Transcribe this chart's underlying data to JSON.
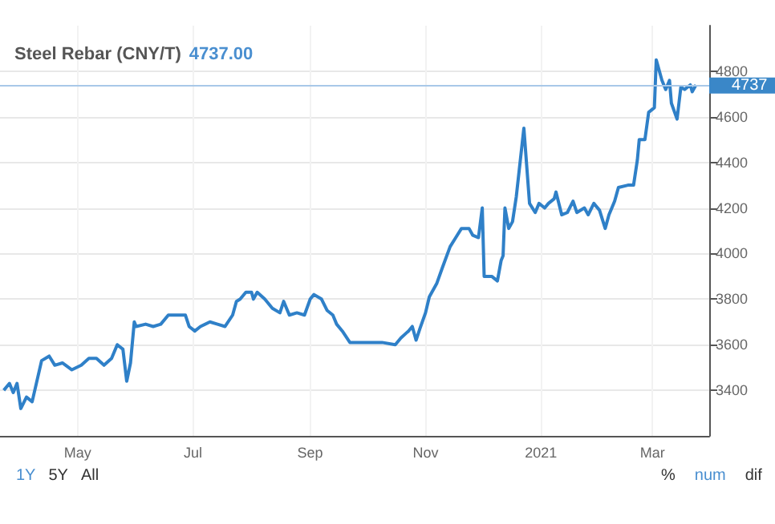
{
  "chart_data": {
    "type": "line",
    "title": "Steel Rebar (CNY/T)",
    "subtitle": "4737.00",
    "x": [
      "2020-03-23",
      "2020-03-26",
      "2020-03-28",
      "2020-03-30",
      "2020-04-01",
      "2020-04-04",
      "2020-04-07",
      "2020-04-12",
      "2020-04-16",
      "2020-04-19",
      "2020-04-23",
      "2020-04-28",
      "2020-05-03",
      "2020-05-07",
      "2020-05-11",
      "2020-05-15",
      "2020-05-19",
      "2020-05-22",
      "2020-05-25",
      "2020-05-27",
      "2020-05-29",
      "2020-05-31",
      "2020-06-01",
      "2020-06-06",
      "2020-06-10",
      "2020-06-14",
      "2020-06-18",
      "2020-06-23",
      "2020-06-27",
      "2020-06-29",
      "2020-07-02",
      "2020-07-05",
      "2020-07-10",
      "2020-07-14",
      "2020-07-18",
      "2020-07-22",
      "2020-07-24",
      "2020-07-26",
      "2020-07-29",
      "2020-08-01",
      "2020-08-02",
      "2020-08-04",
      "2020-08-08",
      "2020-08-12",
      "2020-08-16",
      "2020-08-18",
      "2020-08-21",
      "2020-08-25",
      "2020-08-29",
      "2020-09-01",
      "2020-09-03",
      "2020-09-07",
      "2020-09-10",
      "2020-09-13",
      "2020-09-15",
      "2020-09-18",
      "2020-09-22",
      "2020-09-25",
      "2020-10-02",
      "2020-10-09",
      "2020-10-16",
      "2020-10-19",
      "2020-10-23",
      "2020-10-25",
      "2020-10-27",
      "2020-10-29",
      "2020-11-01",
      "2020-11-03",
      "2020-11-07",
      "2020-11-10",
      "2020-11-14",
      "2020-11-17",
      "2020-11-20",
      "2020-11-24",
      "2020-11-26",
      "2020-11-29",
      "2020-12-01",
      "2020-12-02",
      "2020-12-06",
      "2020-12-09",
      "2020-12-11",
      "2020-12-12",
      "2020-12-13",
      "2020-12-15",
      "2020-12-17",
      "2020-12-19",
      "2020-12-23",
      "2020-12-26",
      "2020-12-29",
      "2020-12-31",
      "2021-01-03",
      "2021-01-05",
      "2021-01-08",
      "2021-01-09",
      "2021-01-12",
      "2021-01-15",
      "2021-01-18",
      "2021-01-20",
      "2021-01-24",
      "2021-01-26",
      "2021-01-29",
      "2021-02-01",
      "2021-02-04",
      "2021-02-06",
      "2021-02-09",
      "2021-02-11",
      "2021-02-16",
      "2021-02-19",
      "2021-02-21",
      "2021-02-22",
      "2021-02-25",
      "2021-02-27",
      "2021-03-02",
      "2021-03-03",
      "2021-03-06",
      "2021-03-08",
      "2021-03-10",
      "2021-03-11",
      "2021-03-14",
      "2021-03-16",
      "2021-03-18",
      "2021-03-21",
      "2021-03-22",
      "2021-03-24"
    ],
    "series": [
      {
        "color": "#2f80c8",
        "values": [
          3400,
          3430,
          3390,
          3430,
          3320,
          3370,
          3350,
          3530,
          3550,
          3510,
          3520,
          3490,
          3510,
          3540,
          3540,
          3510,
          3540,
          3600,
          3580,
          3440,
          3520,
          3700,
          3680,
          3690,
          3680,
          3690,
          3730,
          3730,
          3730,
          3680,
          3660,
          3680,
          3700,
          3690,
          3680,
          3730,
          3790,
          3800,
          3830,
          3830,
          3800,
          3830,
          3800,
          3760,
          3740,
          3790,
          3730,
          3740,
          3730,
          3800,
          3820,
          3800,
          3750,
          3730,
          3690,
          3660,
          3610,
          3610,
          3610,
          3610,
          3600,
          3630,
          3660,
          3680,
          3620,
          3670,
          3740,
          3810,
          3870,
          3940,
          4030,
          4070,
          4110,
          4110,
          4080,
          4070,
          4200,
          3900,
          3900,
          3880,
          3970,
          3990,
          4200,
          4110,
          4140,
          4250,
          4550,
          4220,
          4180,
          4220,
          4200,
          4220,
          4240,
          4270,
          4170,
          4180,
          4230,
          4180,
          4200,
          4170,
          4220,
          4190,
          4110,
          4170,
          4230,
          4290,
          4300,
          4300,
          4410,
          4500,
          4500,
          4620,
          4640,
          4850,
          4760,
          4720,
          4760,
          4660,
          4590,
          4730,
          4720,
          4740,
          4710,
          4740
        ]
      }
    ],
    "xlim": [
      "2020-03-21",
      "2021-03-31"
    ],
    "xticks": [
      {
        "value": "2020-05-01",
        "label": "May"
      },
      {
        "value": "2020-07-01",
        "label": "Jul"
      },
      {
        "value": "2020-09-01",
        "label": "Sep"
      },
      {
        "value": "2020-11-01",
        "label": "Nov"
      },
      {
        "value": "2021-01-01",
        "label": "2021"
      },
      {
        "value": "2021-03-01",
        "label": "Mar"
      }
    ],
    "ylim": [
      3200,
      5000
    ],
    "yticks": [
      3400,
      3600,
      3800,
      4000,
      4200,
      4400,
      4600,
      4800
    ],
    "ref_lines": [
      {
        "axis": "y",
        "value": 4737,
        "label": "4737",
        "color": "#a8c8e8"
      }
    ],
    "annotations": [
      "1Y",
      "5Y",
      "All",
      "%",
      "num",
      "dif"
    ],
    "grid": true,
    "marker": "none",
    "line_style": "solid"
  }
}
